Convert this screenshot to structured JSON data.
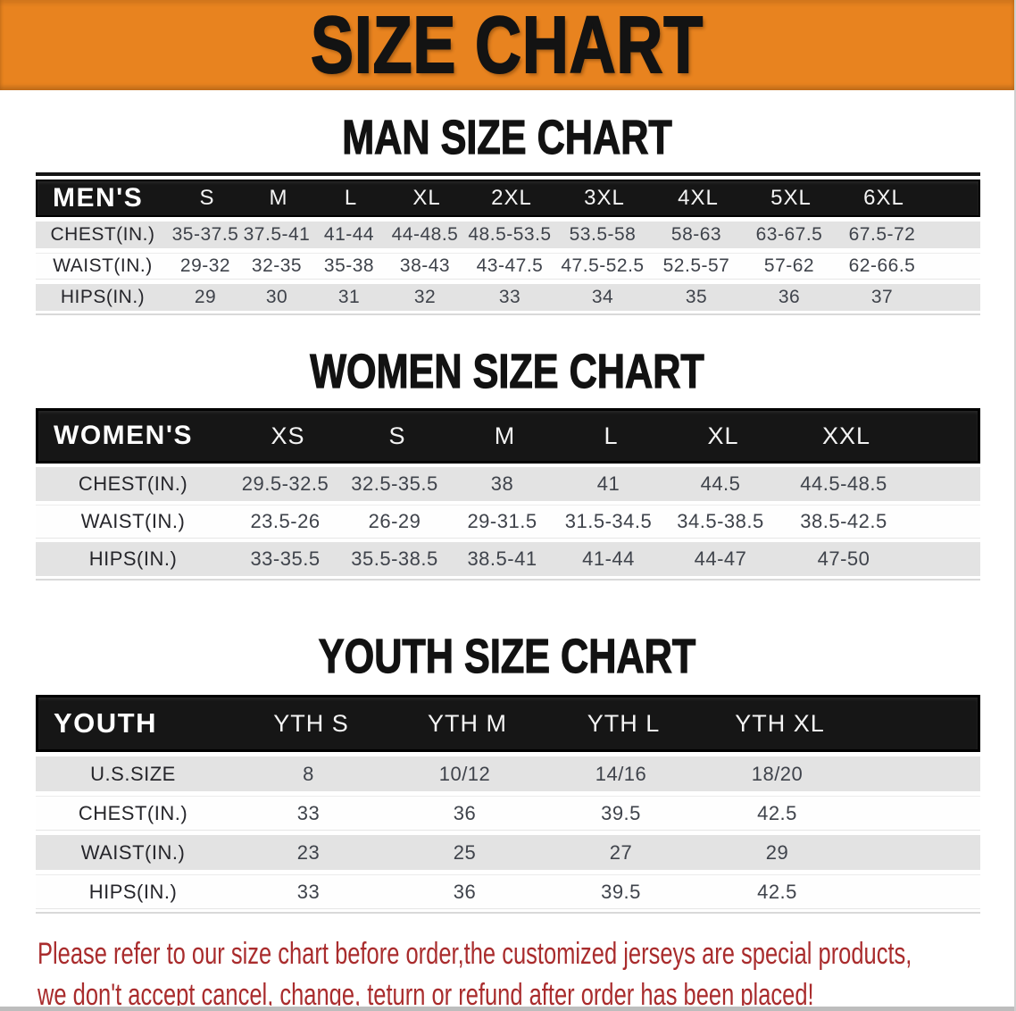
{
  "banner": {
    "title": "SIZE CHART"
  },
  "sections": [
    {
      "id": "men",
      "title": "MAN SIZE CHART",
      "group_label": "MEN'S",
      "sizes": [
        "S",
        "M",
        "L",
        "XL",
        "2XL",
        "3XL",
        "4XL",
        "5XL",
        "6XL"
      ],
      "rows": [
        {
          "label": "CHEST(IN.)",
          "values": [
            "35-37.5",
            "37.5-41",
            "41-44",
            "44-48.5",
            "48.5-53.5",
            "53.5-58",
            "58-63",
            "63-67.5",
            "67.5-72"
          ]
        },
        {
          "label": "WAIST(IN.)",
          "values": [
            "29-32",
            "32-35",
            "35-38",
            "38-43",
            "43-47.5",
            "47.5-52.5",
            "52.5-57",
            "57-62",
            "62-66.5"
          ]
        },
        {
          "label": "HIPS(IN.)",
          "values": [
            "29",
            "30",
            "31",
            "32",
            "33",
            "34",
            "35",
            "36",
            "37"
          ]
        }
      ]
    },
    {
      "id": "women",
      "title": "WOMEN SIZE CHART",
      "group_label": "WOMEN'S",
      "sizes": [
        "XS",
        "S",
        "M",
        "L",
        "XL",
        "XXL"
      ],
      "rows": [
        {
          "label": "CHEST(IN.)",
          "values": [
            "29.5-32.5",
            "32.5-35.5",
            "38",
            "41",
            "44.5",
            "44.5-48.5"
          ]
        },
        {
          "label": "WAIST(IN.)",
          "values": [
            "23.5-26",
            "26-29",
            "29-31.5",
            "31.5-34.5",
            "34.5-38.5",
            "38.5-42.5"
          ]
        },
        {
          "label": "HIPS(IN.)",
          "values": [
            "33-35.5",
            "35.5-38.5",
            "38.5-41",
            "41-44",
            "44-47",
            "47-50"
          ]
        }
      ]
    },
    {
      "id": "youth",
      "title": "YOUTH SIZE CHART",
      "group_label": "YOUTH",
      "sizes": [
        "YTH S",
        "YTH M",
        "YTH L",
        "YTH XL"
      ],
      "rows": [
        {
          "label": "U.S.SIZE",
          "values": [
            "8",
            "10/12",
            "14/16",
            "18/20"
          ]
        },
        {
          "label": "CHEST(IN.)",
          "values": [
            "33",
            "36",
            "39.5",
            "42.5"
          ]
        },
        {
          "label": "WAIST(IN.)",
          "values": [
            "23",
            "25",
            "27",
            "29"
          ]
        },
        {
          "label": "HIPS(IN.)",
          "values": [
            "33",
            "36",
            "39.5",
            "42.5"
          ]
        }
      ]
    }
  ],
  "footer": {
    "line1": "Please refer to our size chart before order,the customized jerseys are special products,",
    "line2": "we don't accept cancel, change, teturn or refund after order has been placed!"
  },
  "colors": {
    "banner_bg": "#E8831F",
    "table_header_bg": "#161616",
    "row_gray": "#E3E3E3",
    "notice_red": "#A92C2D",
    "title_black": "#121212"
  }
}
